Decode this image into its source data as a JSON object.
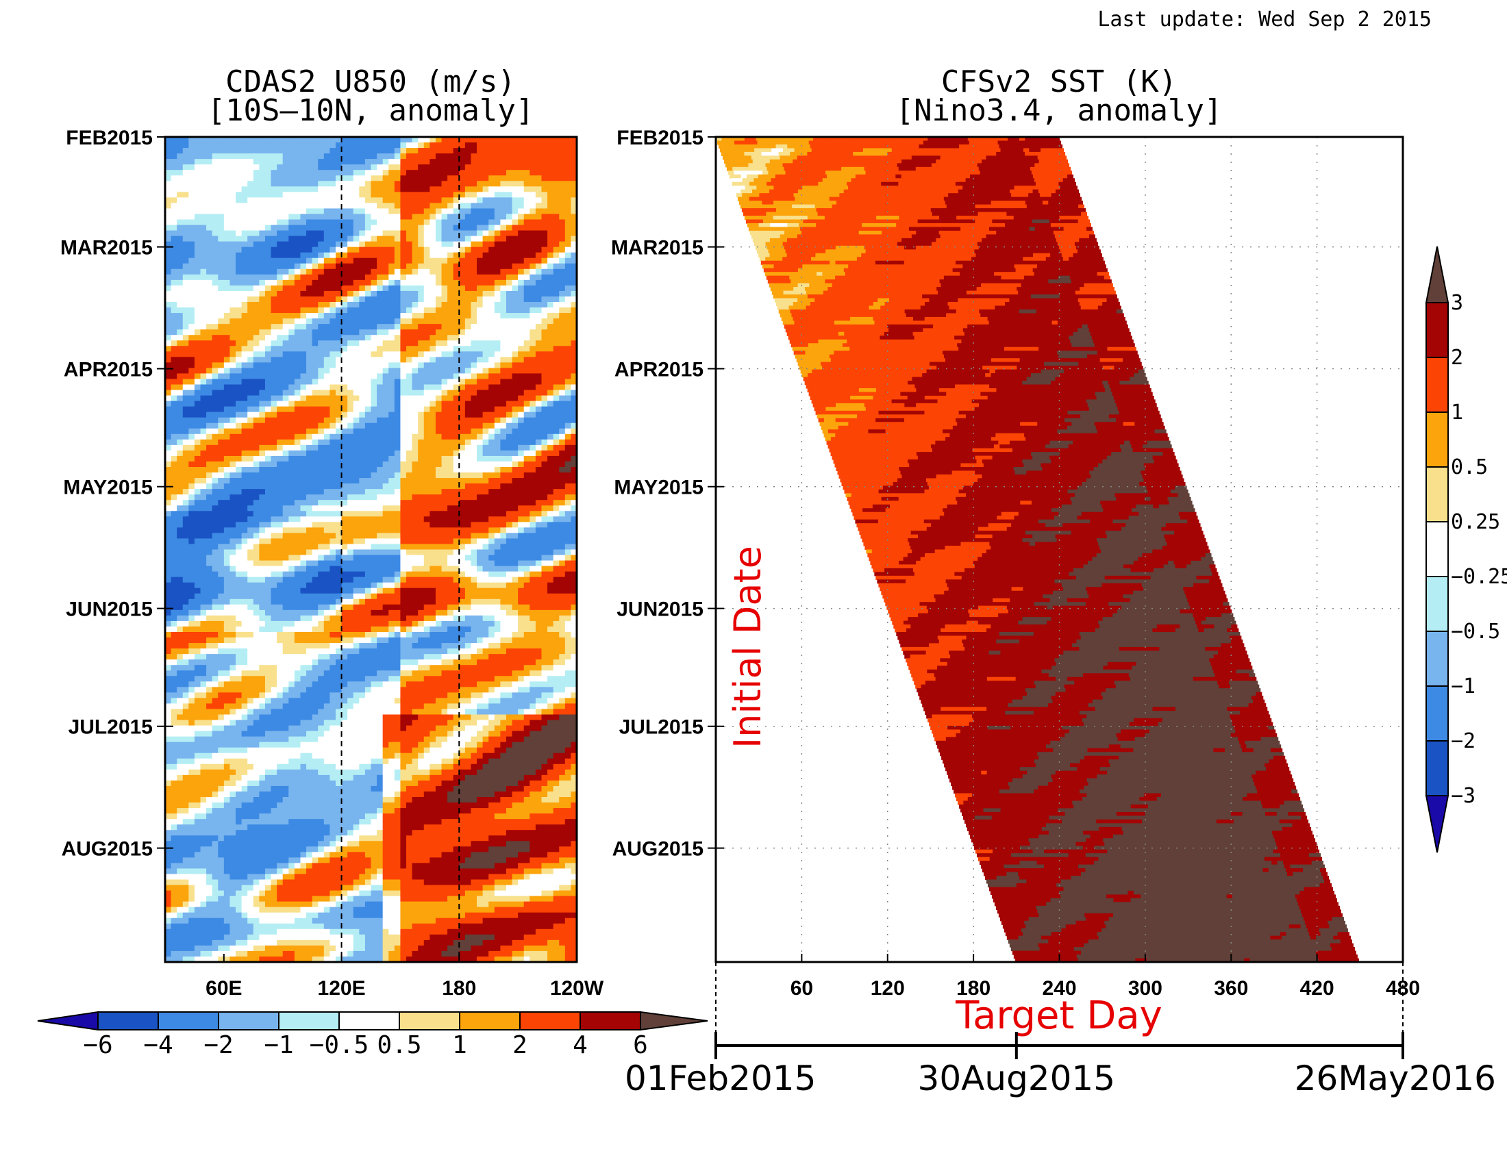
{
  "last_update": "Last update: Wed Sep 2 2015",
  "chart_data": [
    {
      "type": "heatmap",
      "title": "CDAS2 U850 (m/s)",
      "subtitle": "[10S–10N, anomaly]",
      "x_ticks": [
        "60E",
        "120E",
        "180",
        "120W"
      ],
      "x_tick_lon": [
        60,
        120,
        180,
        240
      ],
      "x_range_lon": [
        30,
        240
      ],
      "reference_lines_lon": [
        120,
        180
      ],
      "y_ticks": [
        "FEB2015",
        "MAR2015",
        "APR2015",
        "MAY2015",
        "JUN2015",
        "JUL2015",
        "AUG2015"
      ],
      "y_range": [
        "2015-02-01",
        "2015-08-30"
      ],
      "colorbar_labels": [
        "−6",
        "−4",
        "−2",
        "−1",
        "−0.5",
        "0.5",
        "1",
        "2",
        "4",
        "6"
      ],
      "colorbar_levels": [
        -6,
        -4,
        -2,
        -1,
        -0.5,
        0.5,
        1,
        2,
        4,
        6
      ],
      "colorbar_colors": [
        "#1a54c4",
        "#3d8ae4",
        "#78b4ee",
        "#b4eef4",
        "#ffffff",
        "#f8e08c",
        "#fca40c",
        "#fc4404",
        "#a40404",
        "#604038"
      ],
      "colorbar_under": "#1a0aa8",
      "colorbar_over": "#604038"
    },
    {
      "type": "heatmap",
      "title": "CFSv2 SST (K)",
      "subtitle": "[Nino3.4, anomaly]",
      "xlabel": "Target Day",
      "ylabel": "Initial Date",
      "x_ticks": [
        "60",
        "120",
        "180",
        "240",
        "300",
        "360",
        "420",
        "480"
      ],
      "x_range": [
        0,
        480
      ],
      "y_ticks": [
        "FEB2015",
        "MAR2015",
        "APR2015",
        "MAY2015",
        "JUN2015",
        "JUL2015",
        "AUG2015"
      ],
      "y_range": [
        "2015-02-01",
        "2015-08-30"
      ],
      "date_axis_labels": [
        "01Feb2015",
        "30Aug2015",
        "26May2016"
      ],
      "date_axis_days": [
        0,
        210,
        480
      ],
      "forecast_lead_days": 240,
      "grid": true,
      "colorbar_labels": [
        "3",
        "2",
        "1",
        "0.5",
        "0.25",
        "−0.25",
        "−0.5",
        "−1",
        "−2",
        "−3"
      ],
      "colorbar_levels": [
        3,
        2,
        1,
        0.5,
        0.25,
        -0.25,
        -0.5,
        -1,
        -2,
        -3
      ],
      "colorbar_colors": [
        "#a40404",
        "#fc4404",
        "#fca40c",
        "#f8e08c",
        "#ffffff",
        "#b4eef4",
        "#78b4ee",
        "#3d8ae4",
        "#1a54c4"
      ],
      "colorbar_under": "#1a0aa8",
      "colorbar_over": "#604038"
    }
  ]
}
